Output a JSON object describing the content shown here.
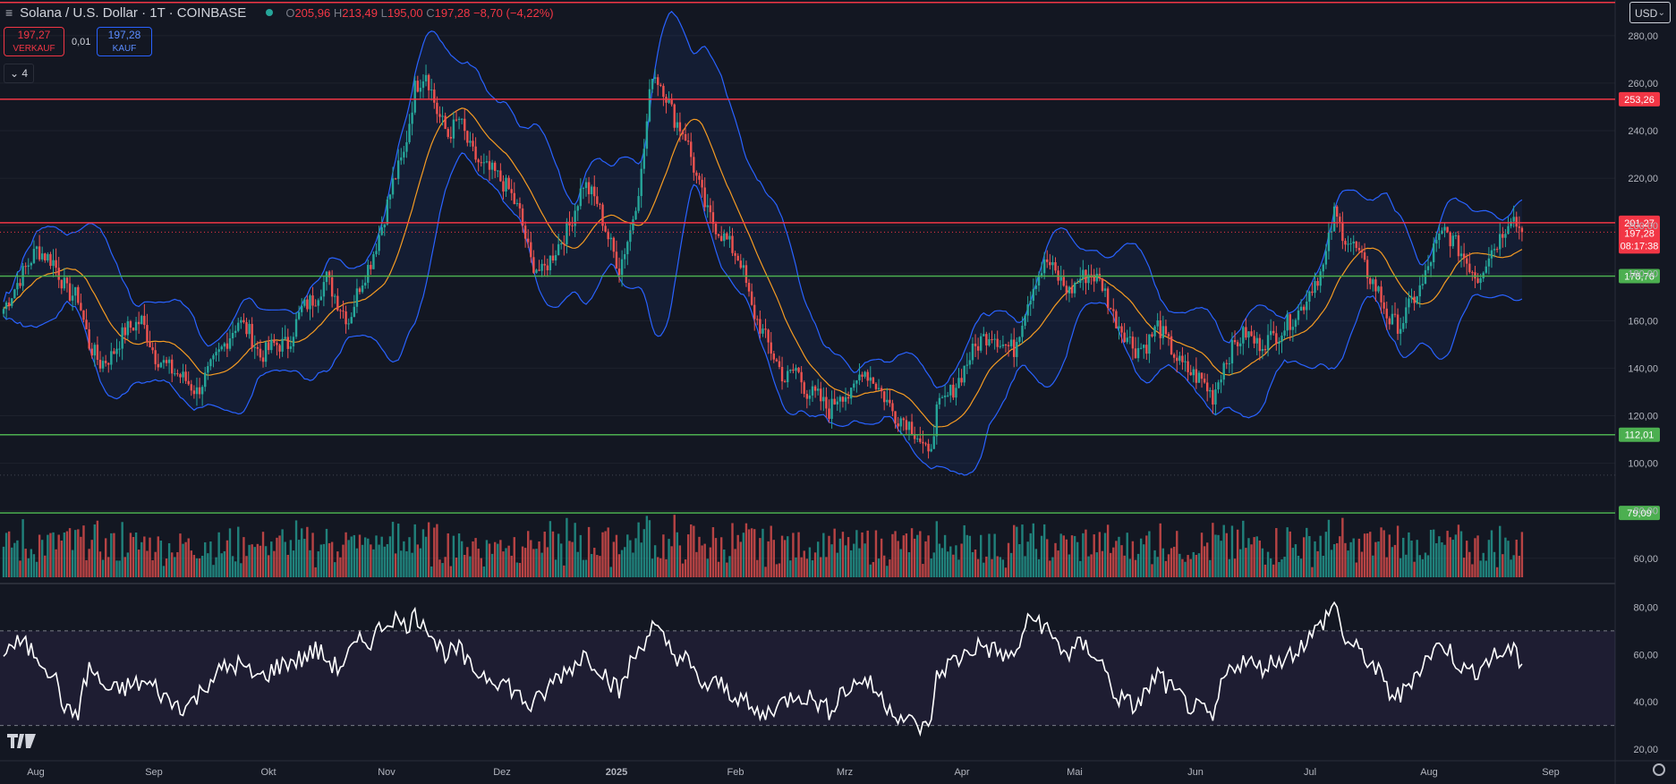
{
  "header": {
    "title": "Solana / U.S. Dollar · 1T · COINBASE",
    "open_label": "O",
    "open": "205,96",
    "high_label": "H",
    "high": "213,49",
    "low_label": "L",
    "low": "195,00",
    "close_label": "C",
    "close": "197,28",
    "change": "−8,70 (−4,22%)"
  },
  "trade": {
    "sell_price": "197,27",
    "sell_label": "VERKAUF",
    "spread": "0,01",
    "buy_price": "197,28",
    "buy_label": "KAUF"
  },
  "indicators_toggle": "4",
  "currency": "USD",
  "colors": {
    "background": "#131722",
    "up": "#26a69a",
    "down": "#ef5350",
    "resistance": "#f23645",
    "support": "#4caf50",
    "bollinger": "#2962ff",
    "ma": "#f59b23",
    "rsi": "#ffffff"
  },
  "chart_data": {
    "type": "candlestick",
    "symbol": "Solana / U.S. Dollar",
    "timeframe": "1T",
    "exchange": "COINBASE",
    "price_axis": {
      "ticks": [
        "60,00",
        "80,00",
        "100,00",
        "120,00",
        "140,00",
        "160,00",
        "180,00",
        "200,00",
        "220,00",
        "240,00",
        "260,00",
        "280,00"
      ],
      "range": [
        52,
        292
      ]
    },
    "time_axis": [
      "Aug",
      "Sep",
      "Okt",
      "Nov",
      "Dez",
      "2025",
      "Feb",
      "Mrz",
      "Apr",
      "Mai",
      "Jun",
      "Jul",
      "Aug",
      "Sep"
    ],
    "horizontal_lines": [
      {
        "value": 294,
        "label": "",
        "color": "#f23645"
      },
      {
        "value": 253.26,
        "label": "253,26",
        "color": "#f23645"
      },
      {
        "value": 201.27,
        "label": "201,27",
        "color": "#f23645"
      },
      {
        "value": 178.76,
        "label": "178,76",
        "color": "#4caf50"
      },
      {
        "value": 112.01,
        "label": "112,01",
        "color": "#4caf50"
      },
      {
        "value": 79.09,
        "label": "79,09",
        "color": "#4caf50"
      }
    ],
    "last_price": {
      "value": 197.28,
      "label": "197,28",
      "countdown": "08:17:38"
    },
    "price_path_close": [
      [
        0,
        165
      ],
      [
        6,
        178
      ],
      [
        12,
        190
      ],
      [
        18,
        185
      ],
      [
        23,
        172
      ],
      [
        27,
        170
      ],
      [
        31,
        150
      ],
      [
        35,
        142
      ],
      [
        39,
        145
      ],
      [
        44,
        156
      ],
      [
        50,
        160
      ],
      [
        55,
        145
      ],
      [
        60,
        140
      ],
      [
        66,
        135
      ],
      [
        70,
        130
      ],
      [
        75,
        140
      ],
      [
        80,
        150
      ],
      [
        85,
        160
      ],
      [
        89,
        155
      ],
      [
        93,
        145
      ],
      [
        98,
        150
      ],
      [
        103,
        150
      ],
      [
        108,
        165
      ],
      [
        113,
        170
      ],
      [
        117,
        178
      ],
      [
        121,
        168
      ],
      [
        125,
        160
      ],
      [
        129,
        175
      ],
      [
        133,
        185
      ],
      [
        137,
        200
      ],
      [
        141,
        218
      ],
      [
        145,
        230
      ],
      [
        149,
        258
      ],
      [
        153,
        265
      ],
      [
        157,
        248
      ],
      [
        161,
        238
      ],
      [
        165,
        245
      ],
      [
        169,
        232
      ],
      [
        173,
        225
      ],
      [
        178,
        222
      ],
      [
        183,
        215
      ],
      [
        187,
        205
      ],
      [
        191,
        185
      ],
      [
        195,
        180
      ],
      [
        200,
        190
      ],
      [
        205,
        200
      ],
      [
        210,
        218
      ],
      [
        215,
        210
      ],
      [
        219,
        195
      ],
      [
        223,
        182
      ],
      [
        227,
        198
      ],
      [
        231,
        222
      ],
      [
        235,
        265
      ],
      [
        239,
        258
      ],
      [
        243,
        245
      ],
      [
        247,
        238
      ],
      [
        251,
        220
      ],
      [
        255,
        205
      ],
      [
        259,
        198
      ],
      [
        263,
        192
      ],
      [
        267,
        185
      ],
      [
        271,
        165
      ],
      [
        275,
        155
      ],
      [
        279,
        145
      ],
      [
        283,
        135
      ],
      [
        287,
        140
      ],
      [
        291,
        130
      ],
      [
        295,
        128
      ],
      [
        299,
        122
      ],
      [
        303,
        130
      ],
      [
        307,
        128
      ],
      [
        311,
        140
      ],
      [
        315,
        135
      ],
      [
        319,
        128
      ],
      [
        323,
        120
      ],
      [
        327,
        118
      ],
      [
        331,
        112
      ],
      [
        335,
        102
      ],
      [
        338,
        122
      ],
      [
        342,
        128
      ],
      [
        346,
        135
      ],
      [
        350,
        145
      ],
      [
        354,
        152
      ],
      [
        358,
        155
      ],
      [
        362,
        150
      ],
      [
        366,
        148
      ],
      [
        370,
        165
      ],
      [
        374,
        178
      ],
      [
        378,
        185
      ],
      [
        382,
        178
      ],
      [
        386,
        172
      ],
      [
        390,
        178
      ],
      [
        394,
        180
      ],
      [
        398,
        175
      ],
      [
        402,
        162
      ],
      [
        406,
        155
      ],
      [
        410,
        148
      ],
      [
        414,
        150
      ],
      [
        418,
        158
      ],
      [
        422,
        150
      ],
      [
        426,
        142
      ],
      [
        430,
        138
      ],
      [
        434,
        135
      ],
      [
        438,
        128
      ],
      [
        442,
        142
      ],
      [
        446,
        150
      ],
      [
        450,
        155
      ],
      [
        454,
        150
      ],
      [
        458,
        152
      ],
      [
        462,
        155
      ],
      [
        466,
        160
      ],
      [
        470,
        165
      ],
      [
        474,
        175
      ],
      [
        478,
        182
      ],
      [
        482,
        205
      ],
      [
        486,
        195
      ],
      [
        490,
        190
      ],
      [
        494,
        180
      ],
      [
        498,
        172
      ],
      [
        502,
        160
      ],
      [
        506,
        158
      ],
      [
        510,
        168
      ],
      [
        514,
        175
      ],
      [
        518,
        190
      ],
      [
        522,
        198
      ],
      [
        526,
        192
      ],
      [
        530,
        185
      ],
      [
        534,
        178
      ],
      [
        538,
        188
      ],
      [
        542,
        195
      ],
      [
        546,
        205
      ],
      [
        550,
        197
      ]
    ],
    "rsi": {
      "levels": [
        70,
        30
      ],
      "ticks": [
        "20,00",
        "40,00",
        "60,00",
        "80,00"
      ],
      "range": [
        17,
        87
      ],
      "values": [
        [
          0,
          62
        ],
        [
          6,
          65
        ],
        [
          12,
          60
        ],
        [
          18,
          52
        ],
        [
          23,
          35
        ],
        [
          27,
          36
        ],
        [
          31,
          55
        ],
        [
          35,
          48
        ],
        [
          39,
          44
        ],
        [
          44,
          46
        ],
        [
          50,
          48
        ],
        [
          55,
          46
        ],
        [
          60,
          40
        ],
        [
          66,
          38
        ],
        [
          70,
          42
        ],
        [
          75,
          50
        ],
        [
          80,
          54
        ],
        [
          85,
          56
        ],
        [
          89,
          52
        ],
        [
          93,
          50
        ],
        [
          98,
          54
        ],
        [
          103,
          57
        ],
        [
          108,
          58
        ],
        [
          113,
          62
        ],
        [
          117,
          58
        ],
        [
          121,
          54
        ],
        [
          125,
          60
        ],
        [
          129,
          65
        ],
        [
          133,
          66
        ],
        [
          137,
          72
        ],
        [
          141,
          76
        ],
        [
          145,
          72
        ],
        [
          149,
          76
        ],
        [
          153,
          74
        ],
        [
          157,
          64
        ],
        [
          161,
          60
        ],
        [
          165,
          62
        ],
        [
          169,
          54
        ],
        [
          173,
          52
        ],
        [
          178,
          50
        ],
        [
          183,
          47
        ],
        [
          187,
          42
        ],
        [
          191,
          38
        ],
        [
          195,
          42
        ],
        [
          200,
          50
        ],
        [
          205,
          54
        ],
        [
          210,
          60
        ],
        [
          215,
          56
        ],
        [
          219,
          50
        ],
        [
          223,
          44
        ],
        [
          227,
          56
        ],
        [
          231,
          64
        ],
        [
          235,
          72
        ],
        [
          239,
          66
        ],
        [
          243,
          60
        ],
        [
          247,
          58
        ],
        [
          251,
          50
        ],
        [
          255,
          46
        ],
        [
          259,
          48
        ],
        [
          263,
          44
        ],
        [
          267,
          42
        ],
        [
          271,
          36
        ],
        [
          275,
          34
        ],
        [
          279,
          38
        ],
        [
          283,
          40
        ],
        [
          287,
          44
        ],
        [
          291,
          42
        ],
        [
          295,
          40
        ],
        [
          299,
          36
        ],
        [
          303,
          44
        ],
        [
          307,
          46
        ],
        [
          311,
          50
        ],
        [
          315,
          46
        ],
        [
          319,
          40
        ],
        [
          323,
          36
        ],
        [
          327,
          32
        ],
        [
          331,
          30
        ],
        [
          335,
          28
        ],
        [
          338,
          50
        ],
        [
          342,
          56
        ],
        [
          346,
          58
        ],
        [
          350,
          62
        ],
        [
          354,
          64
        ],
        [
          358,
          62
        ],
        [
          362,
          60
        ],
        [
          366,
          58
        ],
        [
          370,
          72
        ],
        [
          374,
          76
        ],
        [
          378,
          70
        ],
        [
          382,
          64
        ],
        [
          386,
          60
        ],
        [
          390,
          64
        ],
        [
          394,
          62
        ],
        [
          398,
          56
        ],
        [
          402,
          44
        ],
        [
          406,
          40
        ],
        [
          410,
          38
        ],
        [
          414,
          44
        ],
        [
          418,
          52
        ],
        [
          422,
          46
        ],
        [
          426,
          42
        ],
        [
          430,
          38
        ],
        [
          434,
          36
        ],
        [
          438,
          32
        ],
        [
          442,
          50
        ],
        [
          446,
          56
        ],
        [
          450,
          58
        ],
        [
          454,
          54
        ],
        [
          458,
          56
        ],
        [
          462,
          58
        ],
        [
          466,
          60
        ],
        [
          470,
          64
        ],
        [
          474,
          68
        ],
        [
          478,
          74
        ],
        [
          482,
          82
        ],
        [
          486,
          66
        ],
        [
          490,
          62
        ],
        [
          494,
          58
        ],
        [
          498,
          52
        ],
        [
          502,
          44
        ],
        [
          506,
          42
        ],
        [
          510,
          50
        ],
        [
          514,
          56
        ],
        [
          518,
          62
        ],
        [
          522,
          64
        ],
        [
          526,
          58
        ],
        [
          530,
          52
        ],
        [
          534,
          54
        ],
        [
          538,
          58
        ],
        [
          542,
          60
        ],
        [
          546,
          62
        ],
        [
          550,
          56
        ]
      ]
    }
  }
}
